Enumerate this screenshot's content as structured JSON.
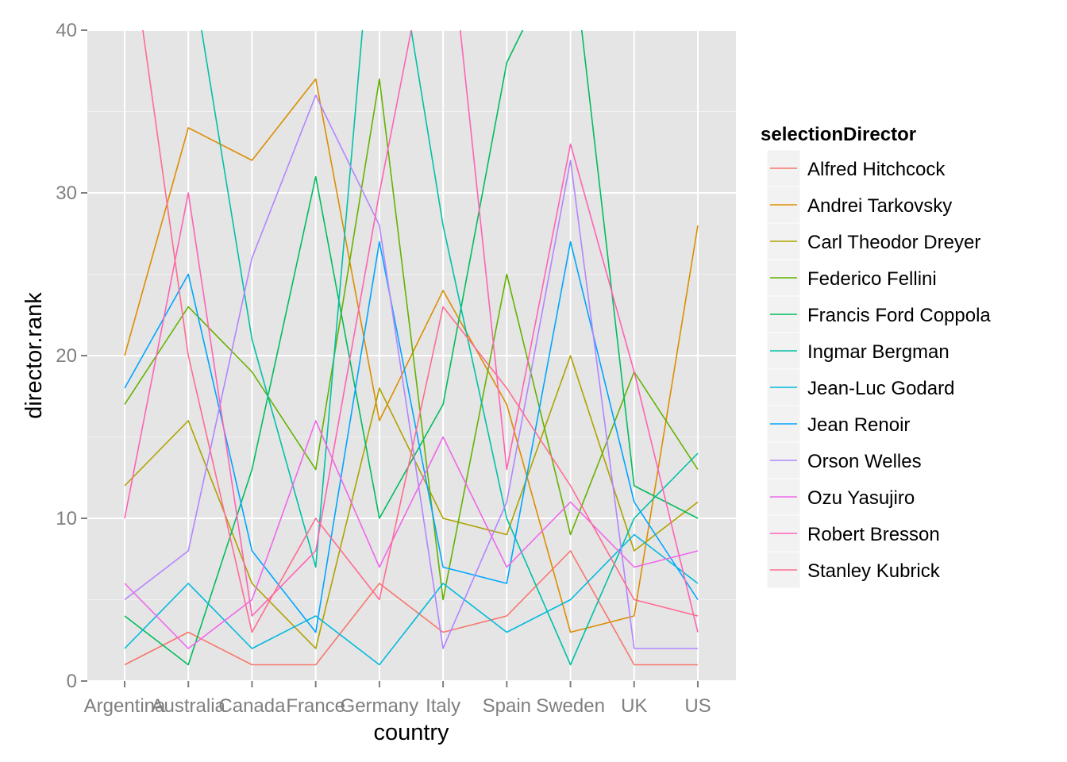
{
  "chart_data": {
    "type": "line",
    "xlabel": "country",
    "ylabel": "director.rank",
    "categories": [
      "Argentina",
      "Australia",
      "Canada",
      "France",
      "Germany",
      "Italy",
      "Spain",
      "Sweden",
      "UK",
      "US"
    ],
    "ylim": [
      0,
      40
    ],
    "yticks": [
      0,
      10,
      20,
      30,
      40
    ],
    "grid": true,
    "legend": {
      "title": "selectionDirector",
      "position": "right"
    },
    "series": [
      {
        "name": "Alfred Hitchcock",
        "color": "#F8766D",
        "values": [
          1,
          3,
          1,
          1,
          6,
          3,
          4,
          8,
          1,
          1
        ]
      },
      {
        "name": "Andrei Tarkovsky",
        "color": "#DB8E00",
        "values": [
          20,
          34,
          32,
          37,
          16,
          24,
          17,
          3,
          4,
          28
        ]
      },
      {
        "name": "Carl Theodor Dreyer",
        "color": "#AEA200",
        "values": [
          12,
          16,
          6,
          2,
          18,
          10,
          9,
          20,
          8,
          11
        ]
      },
      {
        "name": "Federico Fellini",
        "color": "#64B200",
        "values": [
          17,
          23,
          19,
          13,
          37,
          5,
          25,
          9,
          19,
          13
        ]
      },
      {
        "name": "Francis Ford Coppola",
        "color": "#00BD5C",
        "values": [
          4,
          1,
          13,
          31,
          10,
          17,
          38,
          46,
          12,
          10
        ]
      },
      {
        "name": "Ingmar Bergman",
        "color": "#00C1A7",
        "values": [
          52,
          45,
          21,
          7,
          52,
          28,
          10,
          1,
          10,
          14
        ]
      },
      {
        "name": "Jean-Luc Godard",
        "color": "#00BADE",
        "values": [
          2,
          6,
          2,
          4,
          1,
          6,
          3,
          5,
          9,
          6
        ]
      },
      {
        "name": "Jean Renoir",
        "color": "#00A6FF",
        "values": [
          18,
          25,
          8,
          3,
          27,
          7,
          6,
          27,
          11,
          5
        ]
      },
      {
        "name": "Orson Welles",
        "color": "#B385FF",
        "values": [
          5,
          8,
          26,
          36,
          28,
          2,
          11,
          32,
          2,
          2
        ]
      },
      {
        "name": "Ozu Yasujiro",
        "color": "#EF67EB",
        "values": [
          6,
          2,
          5,
          16,
          7,
          15,
          7,
          11,
          7,
          8
        ]
      },
      {
        "name": "Robert Bresson",
        "color": "#FF63B6",
        "values": [
          10,
          30,
          4,
          8,
          30,
          50,
          13,
          33,
          19,
          3
        ]
      },
      {
        "name": "Stanley Kubrick",
        "color": "#FF6C91",
        "values": [
          48,
          20,
          3,
          10,
          5,
          23,
          18,
          12,
          5,
          4
        ]
      }
    ]
  }
}
